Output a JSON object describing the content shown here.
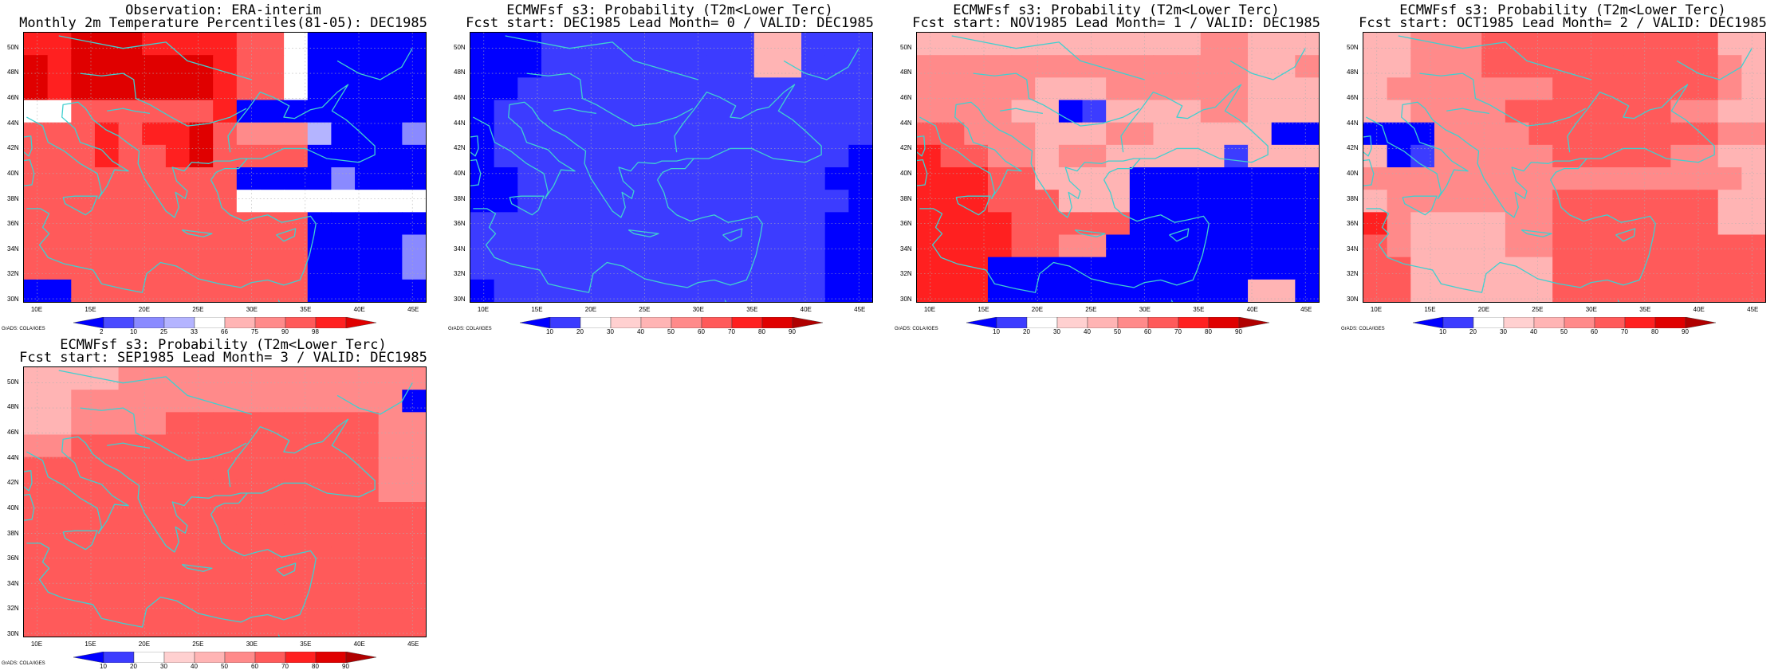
{
  "panels": [
    {
      "title1": "Observation: ERA-interim",
      "title2": "Monthly 2m Temperature Percentiles(81-05): DEC1985",
      "colorbar_labels": [
        "2",
        "10",
        "25",
        "33",
        "66",
        "75",
        "90",
        "98"
      ],
      "palette": [
        "#0000ff",
        "#4a4aff",
        "#8a8aff",
        "#b4b4ff",
        "#ffffff",
        "#ffb4b4",
        "#ff8a8a",
        "#ff5a5a",
        "#ff2020",
        "#e00000"
      ],
      "grid": [
        "88999888877400000",
        "98999999877400000",
        "98999999877400000",
        "44777777800000000",
        "77787889766630002",
        "77787789777700000",
        "77777777700002000",
        "77777777744444444",
        "77777777777700000",
        "77777777777700002",
        "77777777777700002",
        "00777777777700000"
      ]
    },
    {
      "title1": "ECMWFsf s3: Probability (T2m<Lower Terc)",
      "title2": "Fcst start: DEC1985   Lead Month= 0 / VALID: DEC1985",
      "colorbar_labels": [
        "10",
        "20",
        "30",
        "40",
        "50",
        "60",
        "70",
        "80",
        "90"
      ],
      "palette": [
        "#0000ff",
        "#3c3cff",
        "#ffffff",
        "#ffd0d0",
        "#ffb4b4",
        "#ff8a8a",
        "#ff5a5a",
        "#ff2020",
        "#e00000",
        "#b00000"
      ],
      "grid": [
        "00011111111144111",
        "00011111111144111",
        "00111111111111111",
        "01111111111111111",
        "01111111111111111",
        "01111111111111110",
        "00111111111111100",
        "00111111111111110",
        "11111111111111100",
        "11111111111111100",
        "11111111111111100",
        "01111111111111100"
      ]
    },
    {
      "title1": "ECMWFsf s3: Probability (T2m<Lower Terc)",
      "title2": "Fcst start: NOV1985   Lead Month= 1 / VALID: DEC1985",
      "colorbar_labels": [
        "10",
        "20",
        "30",
        "40",
        "50",
        "60",
        "70",
        "80",
        "90"
      ],
      "palette": [
        "#0000ff",
        "#3c3cff",
        "#ffffff",
        "#ffd0d0",
        "#ffb4b4",
        "#ff8a8a",
        "#ff5a5a",
        "#ff2020",
        "#e00000",
        "#b00000"
      ],
      "grid": [
        "44444444444455444",
        "55555555555555445",
        "55555444555555444",
        "55554401444455444",
        "66555444554444400",
        "76655455444441444",
        "77766444400000000",
        "77766644400000000",
        "77776666600000000",
        "77776655000000000",
        "77700000000000000",
        "77700000000000440"
      ]
    },
    {
      "title1": "ECMWFsf s3: Probability (T2m<Lower Terc)",
      "title2": "Fcst start: OCT1985   Lead Month= 2 / VALID: DEC1985",
      "colorbar_labels": [
        "10",
        "20",
        "30",
        "40",
        "50",
        "60",
        "70",
        "80",
        "90"
      ],
      "palette": [
        "#0000ff",
        "#3c3cff",
        "#ffffff",
        "#ffd0d0",
        "#ffb4b4",
        "#ff8a8a",
        "#ff5a5a",
        "#ff2020",
        "#e00000",
        "#b00000"
      ],
      "grid": [
        "44555666666666644",
        "44555666666666654",
        "45555555666666654",
        "44555566666665544",
        "00055556666666655",
        "40155555666665544",
        "55555555555555554",
        "45555555666666644",
        "75444455666666644",
        "65444455666666666",
        "66444444666666666",
        "66444444666666666"
      ]
    },
    {
      "title1": "ECMWFsf s3: Probability (T2m<Lower Terc)",
      "title2": "Fcst start: SEP1985   Lead Month= 3 / VALID: DEC1985",
      "colorbar_labels": [
        "10",
        "20",
        "30",
        "40",
        "50",
        "60",
        "70",
        "80",
        "90"
      ],
      "palette": [
        "#0000ff",
        "#3c3cff",
        "#ffffff",
        "#ffd0d0",
        "#ffb4b4",
        "#ff8a8a",
        "#ff5a5a",
        "#ff2020",
        "#e00000",
        "#b00000"
      ],
      "grid": [
        "44445555555555555",
        "44555555555555550",
        "44555566666666655",
        "55666666666666655",
        "66666666666666655",
        "66666666666666655",
        "66666666666666666",
        "66666666666666666",
        "66666666666666666",
        "66666666666666666",
        "66666666666666666",
        "66666666666666666"
      ]
    }
  ],
  "lat_labels": [
    "50N",
    "48N",
    "46N",
    "44N",
    "42N",
    "40N",
    "38N",
    "36N",
    "34N",
    "32N",
    "30N"
  ],
  "lon_labels": [
    "10E",
    "15E",
    "20E",
    "25E",
    "30E",
    "35E",
    "40E",
    "45E"
  ],
  "credit": "GrADS: COLA/IGES",
  "coast_color": "#40d0d0"
}
